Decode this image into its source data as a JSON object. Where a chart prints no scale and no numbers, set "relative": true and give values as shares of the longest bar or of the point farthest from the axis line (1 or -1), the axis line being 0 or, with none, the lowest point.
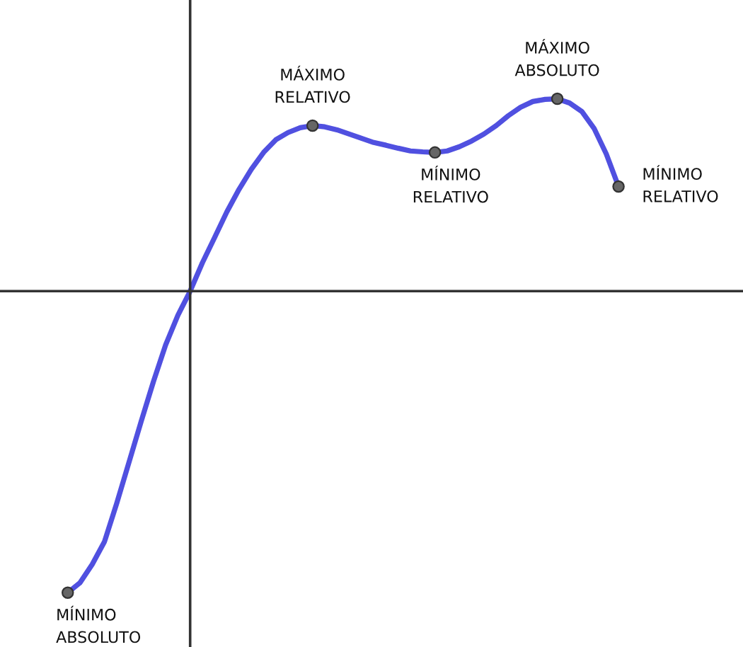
{
  "chart_data": {
    "type": "line",
    "relative": true,
    "categories": [
      null,
      null,
      null,
      null,
      null,
      null,
      null,
      null,
      null,
      null,
      null,
      null,
      null,
      null,
      null,
      null,
      null,
      null,
      null,
      null,
      null,
      null,
      null,
      null,
      null,
      null,
      null,
      null,
      null,
      null,
      null,
      null,
      null,
      null,
      null,
      null,
      null,
      null,
      null,
      null,
      null,
      null,
      null,
      null,
      null,
      null
    ],
    "series": [
      {
        "color": "#5050e0",
        "line_style": "solid",
        "values": [
          -1.0,
          -0.967,
          -0.906,
          -0.831,
          -0.704,
          -0.568,
          -0.432,
          -0.3,
          -0.178,
          -0.08,
          0,
          0.094,
          0.178,
          0.263,
          0.338,
          0.404,
          0.46,
          0.502,
          0.526,
          0.542,
          0.549,
          0.545,
          0.535,
          0.521,
          0.507,
          0.493,
          0.484,
          0.474,
          0.465,
          0.462,
          0.46,
          0.465,
          0.479,
          0.498,
          0.521,
          0.549,
          0.582,
          0.61,
          0.629,
          0.636,
          0.638,
          0.624,
          0.596,
          0.54,
          0.455,
          0.347
        ]
      }
    ],
    "annotations": [
      "MÍNIMO\nABSOLUTO",
      "MÁXIMO\nRELATIVO",
      "MÍNIMO\nRELATIVO",
      "MÁXIMO\nABSOLUTO",
      "MÍNIMO\nRELATIVO"
    ]
  }
}
